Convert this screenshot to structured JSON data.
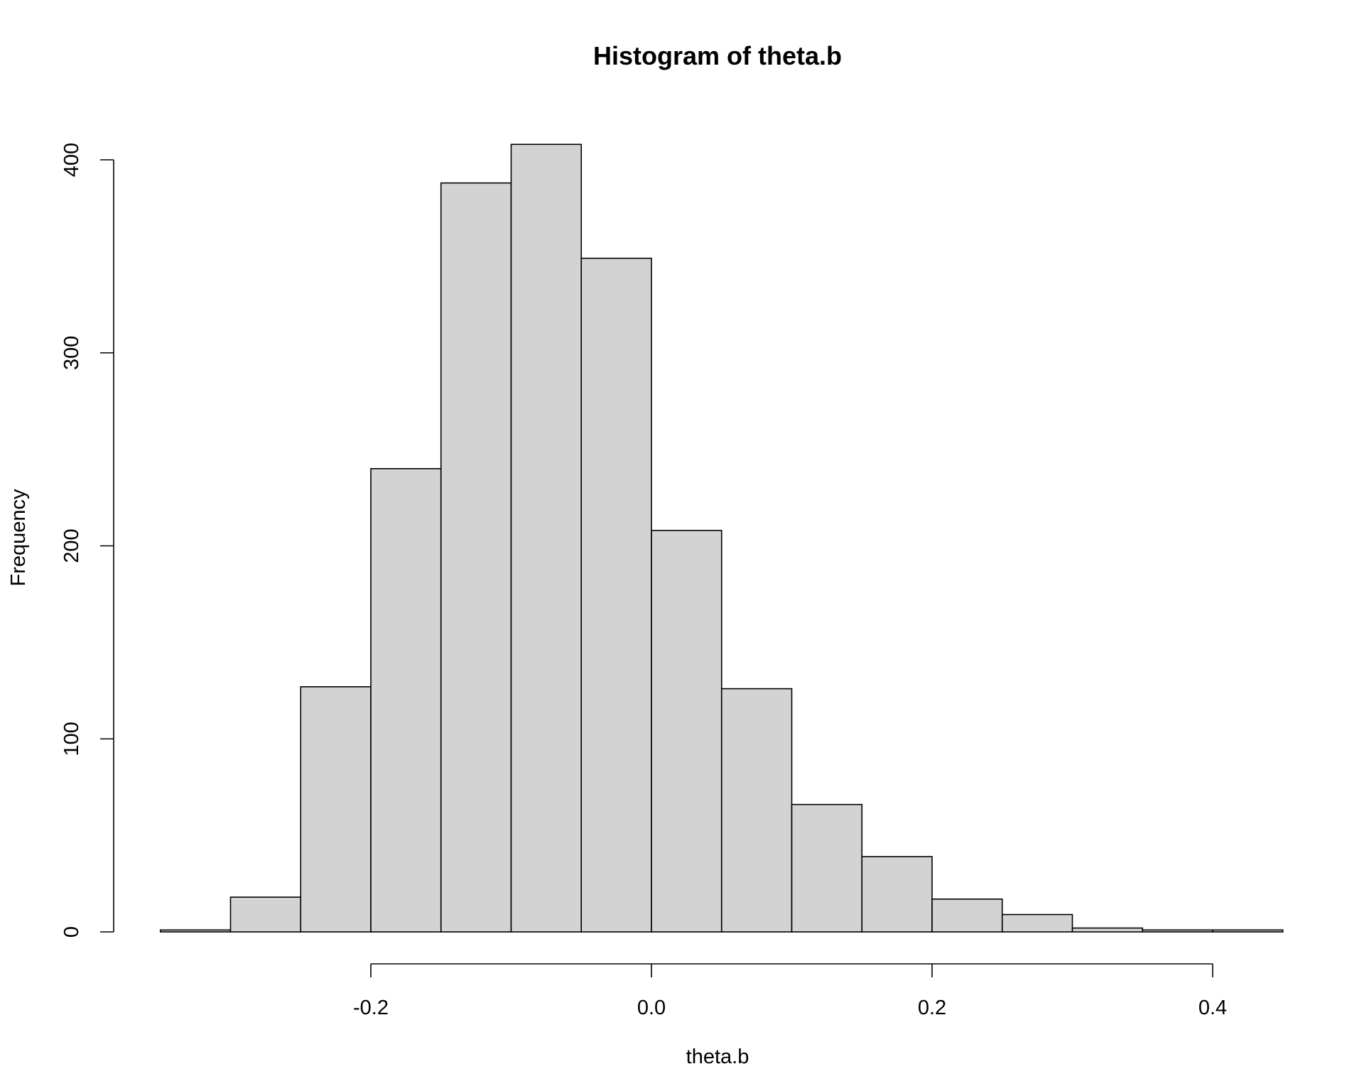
{
  "chart_data": {
    "type": "bar",
    "title": "Histogram of theta.b",
    "xlabel": "theta.b",
    "ylabel": "Frequency",
    "bins": [
      {
        "start": -0.35,
        "end": -0.3,
        "value": 1
      },
      {
        "start": -0.3,
        "end": -0.25,
        "value": 18
      },
      {
        "start": -0.25,
        "end": -0.2,
        "value": 127
      },
      {
        "start": -0.2,
        "end": -0.15,
        "value": 240
      },
      {
        "start": -0.15,
        "end": -0.1,
        "value": 388
      },
      {
        "start": -0.1,
        "end": -0.05,
        "value": 408
      },
      {
        "start": -0.05,
        "end": 0.0,
        "value": 349
      },
      {
        "start": 0.0,
        "end": 0.05,
        "value": 208
      },
      {
        "start": 0.05,
        "end": 0.1,
        "value": 126
      },
      {
        "start": 0.1,
        "end": 0.15,
        "value": 66
      },
      {
        "start": 0.15,
        "end": 0.2,
        "value": 39
      },
      {
        "start": 0.2,
        "end": 0.25,
        "value": 17
      },
      {
        "start": 0.25,
        "end": 0.3,
        "value": 9
      },
      {
        "start": 0.3,
        "end": 0.35,
        "value": 2
      },
      {
        "start": 0.35,
        "end": 0.4,
        "value": 1
      },
      {
        "start": 0.4,
        "end": 0.45,
        "value": 1
      }
    ],
    "xlim": [
      -0.35,
      0.45
    ],
    "ylim": [
      0,
      400
    ],
    "x_ticks": [
      {
        "value": -0.2,
        "label": "-0.2"
      },
      {
        "value": 0.0,
        "label": "0.0"
      },
      {
        "value": 0.2,
        "label": "0.2"
      },
      {
        "value": 0.4,
        "label": "0.4"
      }
    ],
    "y_ticks": [
      {
        "value": 0,
        "label": "0"
      },
      {
        "value": 100,
        "label": "100"
      },
      {
        "value": 200,
        "label": "200"
      },
      {
        "value": 300,
        "label": "300"
      },
      {
        "value": 400,
        "label": "400"
      }
    ],
    "bar_fill": "#d3d3d3",
    "bar_stroke": "#000000",
    "grid": false
  }
}
